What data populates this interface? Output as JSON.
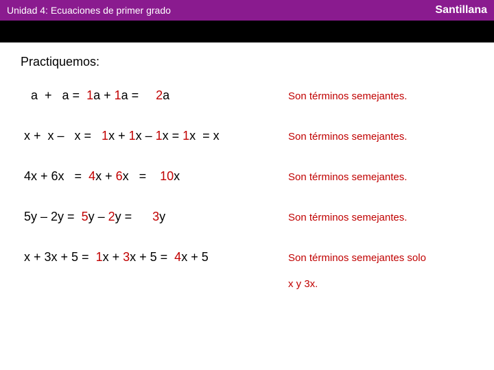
{
  "header": {
    "left": "Unidad 4: Ecuaciones de primer grado",
    "right": "Santillana",
    "bg_color": "#8a1b8f",
    "text_color": "#ffffff"
  },
  "stripe": {
    "bg_color": "#000000"
  },
  "section_title": "Practiquemos:",
  "note_color": "#c00000",
  "coef_color": "#c00000",
  "rows": [
    {
      "parts": [
        {
          "t": "   a  +   a =  ",
          "c": "#000"
        },
        {
          "t": "1",
          "c": "#c00000"
        },
        {
          "t": "a + ",
          "c": "#000"
        },
        {
          "t": "1",
          "c": "#c00000"
        },
        {
          "t": "a =     ",
          "c": "#000"
        },
        {
          "t": "2",
          "c": "#c00000"
        },
        {
          "t": "a",
          "c": "#000"
        }
      ],
      "note": "Son términos semejantes."
    },
    {
      "parts": [
        {
          "t": " x +  x –   x =   ",
          "c": "#000"
        },
        {
          "t": "1",
          "c": "#c00000"
        },
        {
          "t": "x + ",
          "c": "#000"
        },
        {
          "t": "1",
          "c": "#c00000"
        },
        {
          "t": "x – ",
          "c": "#000"
        },
        {
          "t": "1",
          "c": "#c00000"
        },
        {
          "t": "x = ",
          "c": "#000"
        },
        {
          "t": "1",
          "c": "#c00000"
        },
        {
          "t": "x  = x",
          "c": "#000"
        }
      ],
      "note": "Son términos semejantes."
    },
    {
      "parts": [
        {
          "t": " 4x + 6x   =  ",
          "c": "#000"
        },
        {
          "t": "4",
          "c": "#c00000"
        },
        {
          "t": "x + ",
          "c": "#000"
        },
        {
          "t": "6",
          "c": "#c00000"
        },
        {
          "t": "x   =    ",
          "c": "#000"
        },
        {
          "t": "10",
          "c": "#c00000"
        },
        {
          "t": "x",
          "c": "#000"
        }
      ],
      "note": "Son términos semejantes."
    },
    {
      "parts": [
        {
          "t": " 5y – 2y =  ",
          "c": "#000"
        },
        {
          "t": "5",
          "c": "#c00000"
        },
        {
          "t": "y – ",
          "c": "#000"
        },
        {
          "t": "2",
          "c": "#c00000"
        },
        {
          "t": "y =      ",
          "c": "#000"
        },
        {
          "t": "3",
          "c": "#c00000"
        },
        {
          "t": "y",
          "c": "#000"
        }
      ],
      "note": "Son términos semejantes."
    },
    {
      "parts": [
        {
          "t": " x + 3x + 5 =  ",
          "c": "#000"
        },
        {
          "t": "1",
          "c": "#c00000"
        },
        {
          "t": "x + ",
          "c": "#000"
        },
        {
          "t": "3",
          "c": "#c00000"
        },
        {
          "t": "x + 5 =  ",
          "c": "#000"
        },
        {
          "t": "4",
          "c": "#c00000"
        },
        {
          "t": "x + 5",
          "c": "#000"
        }
      ],
      "note": "Son términos semejantes solo"
    }
  ],
  "extra_note": "x y 3x."
}
